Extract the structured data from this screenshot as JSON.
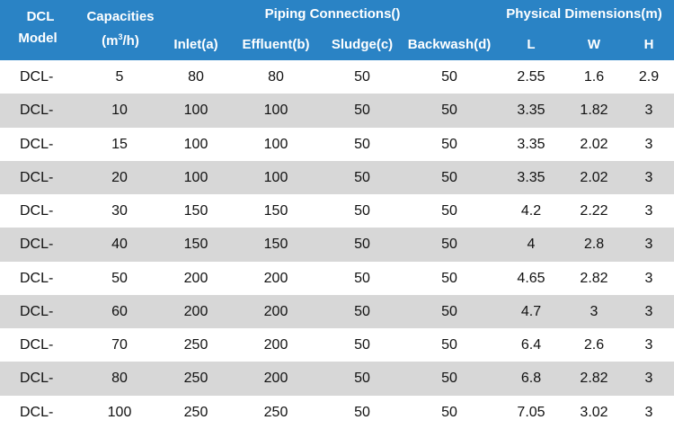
{
  "header": {
    "model_line1": "DCL",
    "model_line2": "Model",
    "capacities_line1": "Capacities",
    "capacities_unit_open": "(m",
    "capacities_unit_sup": "3",
    "capacities_unit_close": "/h)",
    "piping_group": "Piping Connections()",
    "physical_group": "Physical Dimensions(m)",
    "inlet": "Inlet(a)",
    "effluent": "Effluent(b)",
    "sludge": "Sludge(c)",
    "backwash": "Backwash(d)",
    "l": "L",
    "w": "W",
    "h": "H"
  },
  "colors": {
    "header_bg": "#2a83c5",
    "alt_row": "#d7d7d7",
    "row": "#ffffff"
  },
  "rows": [
    {
      "model": "DCL-",
      "cap": "5",
      "inlet": "80",
      "effluent": "80",
      "sludge": "50",
      "backwash": "50",
      "l": "2.55",
      "w": "1.6",
      "h": "2.9"
    },
    {
      "model": "DCL-",
      "cap": "10",
      "inlet": "100",
      "effluent": "100",
      "sludge": "50",
      "backwash": "50",
      "l": "3.35",
      "w": "1.82",
      "h": "3"
    },
    {
      "model": "DCL-",
      "cap": "15",
      "inlet": "100",
      "effluent": "100",
      "sludge": "50",
      "backwash": "50",
      "l": "3.35",
      "w": "2.02",
      "h": "3"
    },
    {
      "model": "DCL-",
      "cap": "20",
      "inlet": "100",
      "effluent": "100",
      "sludge": "50",
      "backwash": "50",
      "l": "3.35",
      "w": "2.02",
      "h": "3"
    },
    {
      "model": "DCL-",
      "cap": "30",
      "inlet": "150",
      "effluent": "150",
      "sludge": "50",
      "backwash": "50",
      "l": "4.2",
      "w": "2.22",
      "h": "3"
    },
    {
      "model": "DCL-",
      "cap": "40",
      "inlet": "150",
      "effluent": "150",
      "sludge": "50",
      "backwash": "50",
      "l": "4",
      "w": "2.8",
      "h": "3"
    },
    {
      "model": "DCL-",
      "cap": "50",
      "inlet": "200",
      "effluent": "200",
      "sludge": "50",
      "backwash": "50",
      "l": "4.65",
      "w": "2.82",
      "h": "3"
    },
    {
      "model": "DCL-",
      "cap": "60",
      "inlet": "200",
      "effluent": "200",
      "sludge": "50",
      "backwash": "50",
      "l": "4.7",
      "w": "3",
      "h": "3"
    },
    {
      "model": "DCL-",
      "cap": "70",
      "inlet": "250",
      "effluent": "200",
      "sludge": "50",
      "backwash": "50",
      "l": "6.4",
      "w": "2.6",
      "h": "3"
    },
    {
      "model": "DCL-",
      "cap": "80",
      "inlet": "250",
      "effluent": "200",
      "sludge": "50",
      "backwash": "50",
      "l": "6.8",
      "w": "2.82",
      "h": "3"
    },
    {
      "model": "DCL-",
      "cap": "100",
      "inlet": "250",
      "effluent": "250",
      "sludge": "50",
      "backwash": "50",
      "l": "7.05",
      "w": "3.02",
      "h": "3"
    }
  ]
}
